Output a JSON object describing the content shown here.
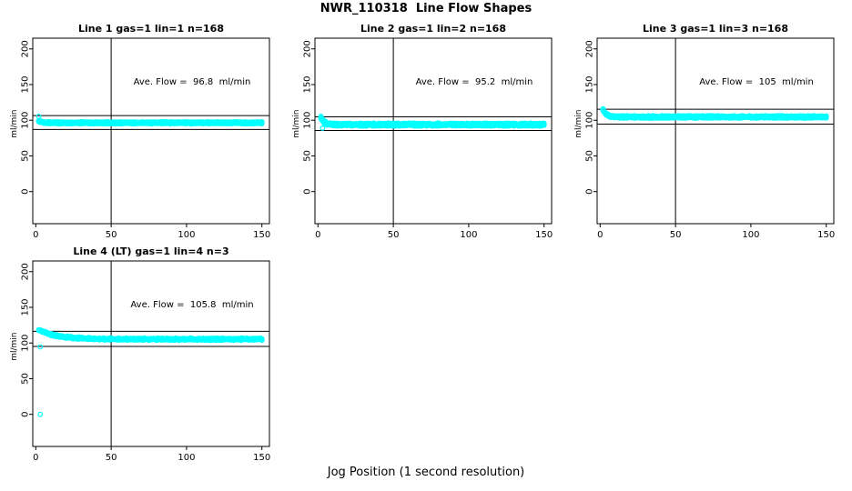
{
  "figure": {
    "title": "NWR_110318  Line Flow Shapes",
    "xlabel": "Jog Position (1 second resolution)",
    "background": "#ffffff"
  },
  "colors": {
    "points": "#00ffff",
    "axis": "#000000",
    "ref_line": "#000000"
  },
  "axes": {
    "xlim": [
      -2,
      155
    ],
    "ylim": [
      -45,
      215
    ],
    "xticks": [
      0,
      50,
      100,
      150
    ],
    "yticks": [
      0,
      50,
      100,
      150,
      200
    ],
    "ylabel": "ml/min"
  },
  "chart_data": [
    {
      "type": "scatter",
      "title": "Line 1 gas=1 lin=1 n=168",
      "ave_flow": 96.8,
      "ave_flow_text": "Ave. Flow =  96.8  ml/min",
      "n": 168,
      "ref_lines_h": [
        106.5,
        87.1
      ],
      "ref_line_v": 50,
      "series": {
        "x_start": 2,
        "x_end": 150,
        "start_value": 99.0,
        "settle_value": 96.4,
        "decay_tau": 2.0,
        "runs": 6,
        "run_spread": 1.0,
        "noise": 0.55,
        "seed": 101,
        "outliers": [
          [
            2,
            105.5
          ]
        ]
      }
    },
    {
      "type": "scatter",
      "title": "Line 2 gas=1 lin=2 n=168",
      "ave_flow": 95.2,
      "ave_flow_text": "Ave. Flow =  95.2  ml/min",
      "n": 168,
      "ref_lines_h": [
        104.7,
        85.7
      ],
      "ref_line_v": 50,
      "series": {
        "x_start": 2,
        "x_end": 150,
        "start_value": 103.5,
        "settle_value": 93.9,
        "decay_tau": 2.2,
        "runs": 6,
        "run_spread": 1.2,
        "noise": 1.0,
        "seed": 202,
        "outliers": [
          [
            3,
            89
          ]
        ]
      }
    },
    {
      "type": "scatter",
      "title": "Line 3 gas=1 lin=3 n=168",
      "ave_flow": 105,
      "ave_flow_text": "Ave. Flow =  105  ml/min",
      "n": 168,
      "ref_lines_h": [
        115.5,
        94.5
      ],
      "ref_line_v": 50,
      "series": {
        "x_start": 2,
        "x_end": 150,
        "start_value": 114.5,
        "settle_value": 104.6,
        "decay_tau": 2.2,
        "runs": 6,
        "run_spread": 1.1,
        "noise": 0.8,
        "seed": 303,
        "outliers": []
      }
    },
    {
      "type": "scatter",
      "title": "Line 4 (LT) gas=1 lin=4 n=3",
      "ave_flow": 105.8,
      "ave_flow_text": "Ave. Flow =  105.8  ml/min",
      "n": 3,
      "ref_lines_h": [
        116.4,
        95.2
      ],
      "ref_line_v": 50,
      "series": {
        "x_start": 2,
        "x_end": 150,
        "start_value": 118.5,
        "settle_value": 105.3,
        "decay_tau": 12,
        "runs": 3,
        "run_spread": 0.9,
        "noise": 0.8,
        "seed": 404,
        "outliers": [
          [
            3,
            94.5
          ],
          [
            3,
            0
          ]
        ]
      }
    }
  ]
}
